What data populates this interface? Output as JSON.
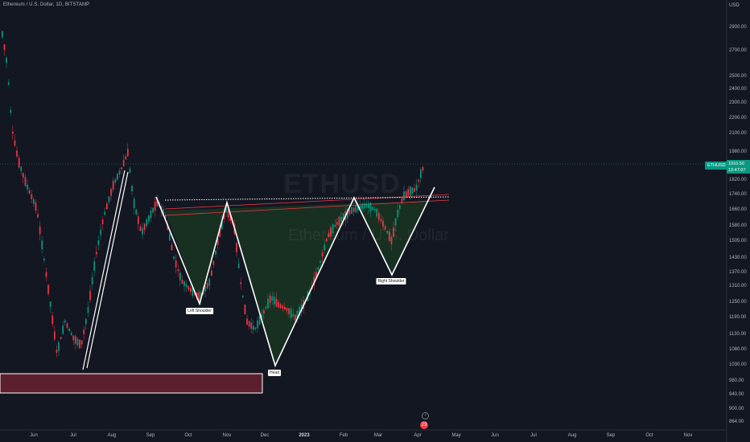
{
  "title": "Ethereum / U.S. Dollar, 1D, BITSTAMP",
  "watermark": {
    "symbol": "ETHUSD",
    "name": "Ethereum / U.S. Dollar"
  },
  "currency": "USD",
  "colors": {
    "background": "#131722",
    "up": "#089981",
    "down": "#f23645",
    "pattern_fill": "#1e4620",
    "zone": "#5c1f2e",
    "lines": "#ffffff"
  },
  "price_axis": [
    "2900.00",
    "2700.00",
    "2500.00",
    "2400.00",
    "2300.00",
    "2200.00",
    "2100.00",
    "1980.00",
    "1820.00",
    "1740.00",
    "1660.00",
    "1580.00",
    "1505.00",
    "1430.00",
    "1370.00",
    "1310.00",
    "1250.00",
    "1190.00",
    "1130.00",
    "1080.00",
    "1030.00",
    "980.00",
    "940.00",
    "900.00",
    "864.00"
  ],
  "time_axis": [
    "Jun",
    "Jul",
    "Aug",
    "Sep",
    "Oct",
    "Nov",
    "Dec",
    "2023",
    "Feb",
    "Mar",
    "Apr",
    "May",
    "Jun",
    "Jul",
    "Aug",
    "Sep",
    "Oct",
    "Nov"
  ],
  "last_price": {
    "symbol": "ETHUSD",
    "price": "1910.50",
    "countdown": "13:47:07"
  },
  "pattern_labels": {
    "left_shoulder": "Left Shoulder",
    "head": "Head",
    "right_shoulder": "Right Shoulder"
  },
  "event_badge": "23",
  "icons": {
    "flash": "flash-icon",
    "event": "event-icon"
  },
  "chart_data": {
    "type": "candlestick",
    "symbol": "ETHUSD",
    "interval": "1D",
    "exchange": "BITSTAMP",
    "pattern": "inverse head and shoulders",
    "neckline_price": [
      1700,
      1740
    ],
    "left_shoulder_price": 1250,
    "head_price": 1030,
    "right_shoulder_price": 1390,
    "support_zone": [
      940,
      1005
    ],
    "ylim": [
      864,
      2950
    ]
  }
}
